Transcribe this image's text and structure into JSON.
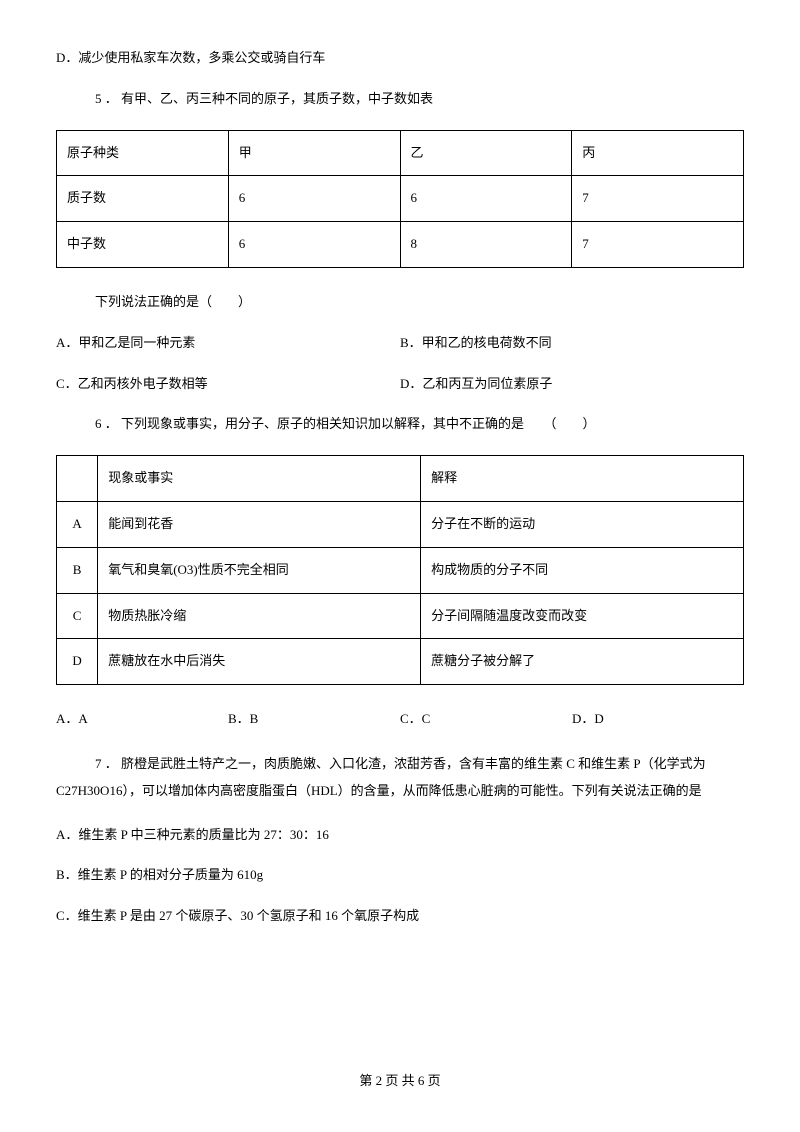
{
  "optD_prev": "D．减少使用私家车次数，多乘公交或骑自行车",
  "q5": {
    "stem": "5 ． 有甲、乙、丙三种不同的原子，其质子数，中子数如表",
    "table": {
      "r0": [
        "原子种类",
        "甲",
        "乙",
        "丙"
      ],
      "r1": [
        "质子数",
        "6",
        "6",
        "7"
      ],
      "r2": [
        "中子数",
        "6",
        "8",
        "7"
      ]
    },
    "prompt": "下列说法正确的是（　　）",
    "optA": "A．甲和乙是同一种元素",
    "optB": "B．甲和乙的核电荷数不同",
    "optC": "C．乙和丙核外电子数相等",
    "optD": "D．乙和丙互为同位素原子"
  },
  "q6": {
    "stem": "6 ． 下列现象或事实，用分子、原子的相关知识加以解释，其中不正确的是　　（　　）",
    "table": {
      "h1": "现象或事实",
      "h2": "解释",
      "rA": [
        "A",
        "能闻到花香",
        "分子在不断的运动"
      ],
      "rB": [
        "B",
        "氧气和臭氧(O3)性质不完全相同",
        "构成物质的分子不同"
      ],
      "rC": [
        "C",
        "物质热胀冷缩",
        "分子间隔随温度改变而改变"
      ],
      "rD": [
        "D",
        "蔗糖放在水中后消失",
        "蔗糖分子被分解了"
      ]
    },
    "optA": "A．A",
    "optB": "B．B",
    "optC": "C．C",
    "optD": "D．D"
  },
  "q7": {
    "stem": "7 ． 脐橙是武胜土特产之一，肉质脆嫩、入口化渣，浓甜芳香，含有丰富的维生素 C 和维生素 P（化学式为 C27H30O16），可以增加体内高密度脂蛋白（HDL）的含量，从而降低患心脏病的可能性。下列有关说法正确的是",
    "optA": "A．维生素 P 中三种元素的质量比为 27：30：16",
    "optB": "B．维生素 P 的相对分子质量为 610g",
    "optC": "C．维生素 P 是由 27 个碳原子、30 个氢原子和 16 个氧原子构成"
  },
  "footer": "第 2 页 共 6 页"
}
